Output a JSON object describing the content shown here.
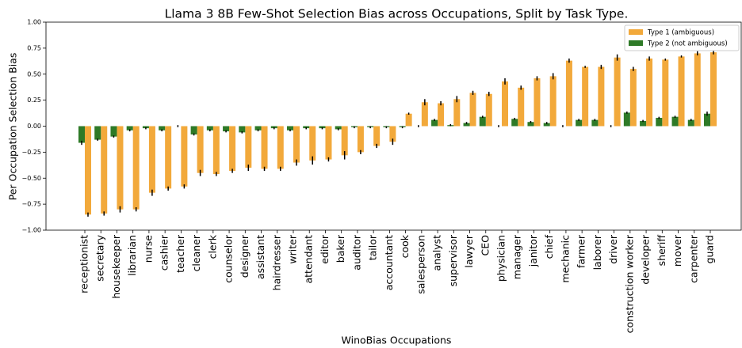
{
  "chart_data": {
    "type": "bar",
    "title": "Llama 3 8B Few-Shot Selection Bias across Occupations, Split by Task Type.",
    "xlabel": "WinoBias Occupations",
    "ylabel": "Per Occupation Selection Bias",
    "categories": [
      "receptionist",
      "secretary",
      "housekeeper",
      "librarian",
      "nurse",
      "cashier",
      "teacher",
      "cleaner",
      "clerk",
      "counselor",
      "designer",
      "assistant",
      "hairdresser",
      "writer",
      "attendant",
      "editor",
      "baker",
      "auditor",
      "tailor",
      "accountant",
      "cook",
      "salesperson",
      "analyst",
      "supervisor",
      "lawyer",
      "CEO",
      "physician",
      "manager",
      "janitor",
      "chief",
      "mechanic",
      "farmer",
      "laborer",
      "driver",
      "construction worker",
      "developer",
      "sheriff",
      "mover",
      "carpenter",
      "guard"
    ],
    "series": [
      {
        "name": "Type 1 (ambiguous)",
        "color": "#f2a93b",
        "values": [
          -0.85,
          -0.84,
          -0.8,
          -0.8,
          -0.64,
          -0.6,
          -0.58,
          -0.45,
          -0.46,
          -0.43,
          -0.4,
          -0.41,
          -0.41,
          -0.35,
          -0.33,
          -0.32,
          -0.28,
          -0.25,
          -0.19,
          -0.15,
          0.12,
          0.23,
          0.22,
          0.26,
          0.32,
          0.31,
          0.43,
          0.37,
          0.46,
          0.48,
          0.63,
          0.57,
          0.57,
          0.66,
          0.55,
          0.65,
          0.64,
          0.67,
          0.7,
          0.71
        ],
        "errors": [
          0.02,
          0.02,
          0.03,
          0.02,
          0.03,
          0.02,
          0.02,
          0.03,
          0.02,
          0.02,
          0.03,
          0.02,
          0.02,
          0.03,
          0.04,
          0.02,
          0.04,
          0.02,
          0.02,
          0.03,
          0.01,
          0.03,
          0.02,
          0.03,
          0.02,
          0.02,
          0.03,
          0.02,
          0.02,
          0.03,
          0.02,
          0.01,
          0.02,
          0.03,
          0.02,
          0.02,
          0.01,
          0.01,
          0.02,
          0.02
        ]
      },
      {
        "name": "Type 2 (not ambiguous)",
        "color": "#2e7a27",
        "values": [
          -0.16,
          -0.13,
          -0.1,
          -0.04,
          -0.02,
          -0.04,
          0.0,
          -0.08,
          -0.04,
          -0.05,
          -0.06,
          -0.04,
          -0.02,
          -0.04,
          -0.02,
          -0.02,
          -0.03,
          -0.01,
          -0.01,
          -0.01,
          -0.01,
          0.0,
          0.06,
          0.01,
          0.03,
          0.09,
          0.0,
          0.07,
          0.04,
          0.03,
          0.0,
          0.06,
          0.06,
          0.0,
          0.13,
          0.05,
          0.08,
          0.09,
          0.06,
          0.12
        ],
        "errors": [
          0.02,
          0.01,
          0.01,
          0.01,
          0.01,
          0.01,
          0.01,
          0.01,
          0.01,
          0.01,
          0.01,
          0.01,
          0.01,
          0.01,
          0.01,
          0.01,
          0.01,
          0.01,
          0.01,
          0.01,
          0.01,
          0.01,
          0.01,
          0.01,
          0.01,
          0.01,
          0.01,
          0.01,
          0.01,
          0.01,
          0.01,
          0.01,
          0.01,
          0.01,
          0.01,
          0.01,
          0.01,
          0.01,
          0.01,
          0.02
        ]
      }
    ],
    "ylim": [
      -1,
      1
    ],
    "yticks": [
      {
        "value": -1,
        "label": "−1.00"
      },
      {
        "value": -0.75,
        "label": "−0.75"
      },
      {
        "value": -0.5,
        "label": "−0.50"
      },
      {
        "value": -0.25,
        "label": "−0.25"
      },
      {
        "value": 0,
        "label": "0.00"
      },
      {
        "value": 0.25,
        "label": "0.25"
      },
      {
        "value": 0.5,
        "label": "0.50"
      },
      {
        "value": 0.75,
        "label": "0.75"
      },
      {
        "value": 1,
        "label": "1.00"
      }
    ],
    "legend": "upper right"
  }
}
